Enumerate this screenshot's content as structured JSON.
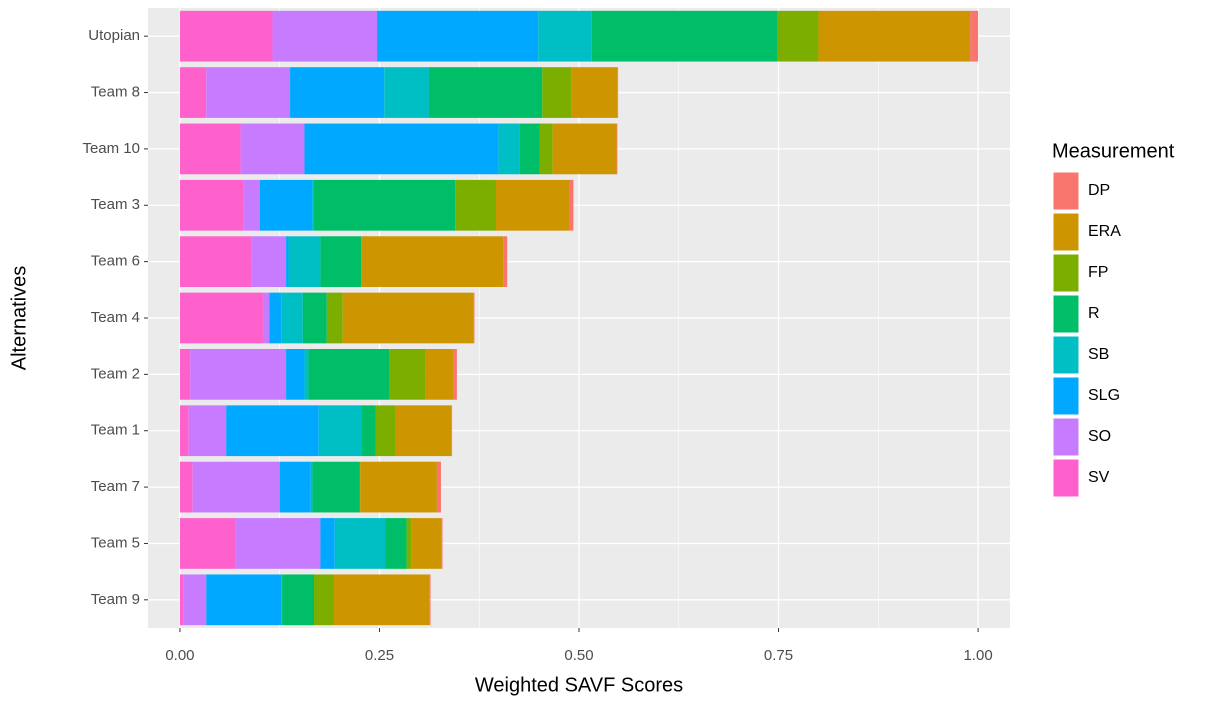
{
  "chart_data": {
    "type": "stacked-hbar",
    "x_label": "Weighted SAVF Scores",
    "y_label": "Alternatives",
    "legend_title": "Measurement",
    "legend_position": "right",
    "grid": true,
    "categories": [
      "Utopian",
      "Team 8",
      "Team 10",
      "Team 3",
      "Team 6",
      "Team 4",
      "Team 2",
      "Team 1",
      "Team 7",
      "Team 5",
      "Team 9"
    ],
    "xlim": [
      -0.04,
      1.04
    ],
    "xticks": [
      {
        "value": 0,
        "label": "0.00"
      },
      {
        "value": 0.25,
        "label": "0.25"
      },
      {
        "value": 0.5,
        "label": "0.50"
      },
      {
        "value": 0.75,
        "label": "0.75"
      },
      {
        "value": 1,
        "label": "1.00"
      }
    ],
    "series": [
      {
        "name": "DP",
        "color": "#F8766D",
        "values": [
          0.01,
          0.001,
          0.001,
          0.005,
          0.005,
          0.001,
          0.004,
          0.001,
          0.005,
          0.001,
          0.001
        ]
      },
      {
        "name": "ERA",
        "color": "#CD9600",
        "values": [
          0.19,
          0.057,
          0.08,
          0.092,
          0.177,
          0.164,
          0.035,
          0.07,
          0.096,
          0.038,
          0.12
        ]
      },
      {
        "name": "FP",
        "color": "#7CAE00",
        "values": [
          0.051,
          0.037,
          0.016,
          0.051,
          0.001,
          0.02,
          0.046,
          0.025,
          0.001,
          0.006,
          0.025
        ]
      },
      {
        "name": "R",
        "color": "#00BE67",
        "values": [
          0.233,
          0.142,
          0.025,
          0.178,
          0.051,
          0.03,
          0.101,
          0.018,
          0.059,
          0.027,
          0.04
        ]
      },
      {
        "name": "SB",
        "color": "#00BFC4",
        "values": [
          0.067,
          0.056,
          0.027,
          0.001,
          0.04,
          0.027,
          0.005,
          0.053,
          0.002,
          0.063,
          0.001
        ]
      },
      {
        "name": "SLG",
        "color": "#00A9FF",
        "values": [
          0.202,
          0.118,
          0.243,
          0.066,
          0.003,
          0.015,
          0.023,
          0.116,
          0.039,
          0.018,
          0.094
        ]
      },
      {
        "name": "SO",
        "color": "#C77CFF",
        "values": [
          0.131,
          0.105,
          0.08,
          0.02,
          0.043,
          0.008,
          0.12,
          0.047,
          0.109,
          0.106,
          0.029
        ]
      },
      {
        "name": "SV",
        "color": "#FF61CC",
        "values": [
          0.116,
          0.033,
          0.076,
          0.08,
          0.09,
          0.104,
          0.013,
          0.011,
          0.016,
          0.07,
          0.004
        ]
      }
    ]
  }
}
